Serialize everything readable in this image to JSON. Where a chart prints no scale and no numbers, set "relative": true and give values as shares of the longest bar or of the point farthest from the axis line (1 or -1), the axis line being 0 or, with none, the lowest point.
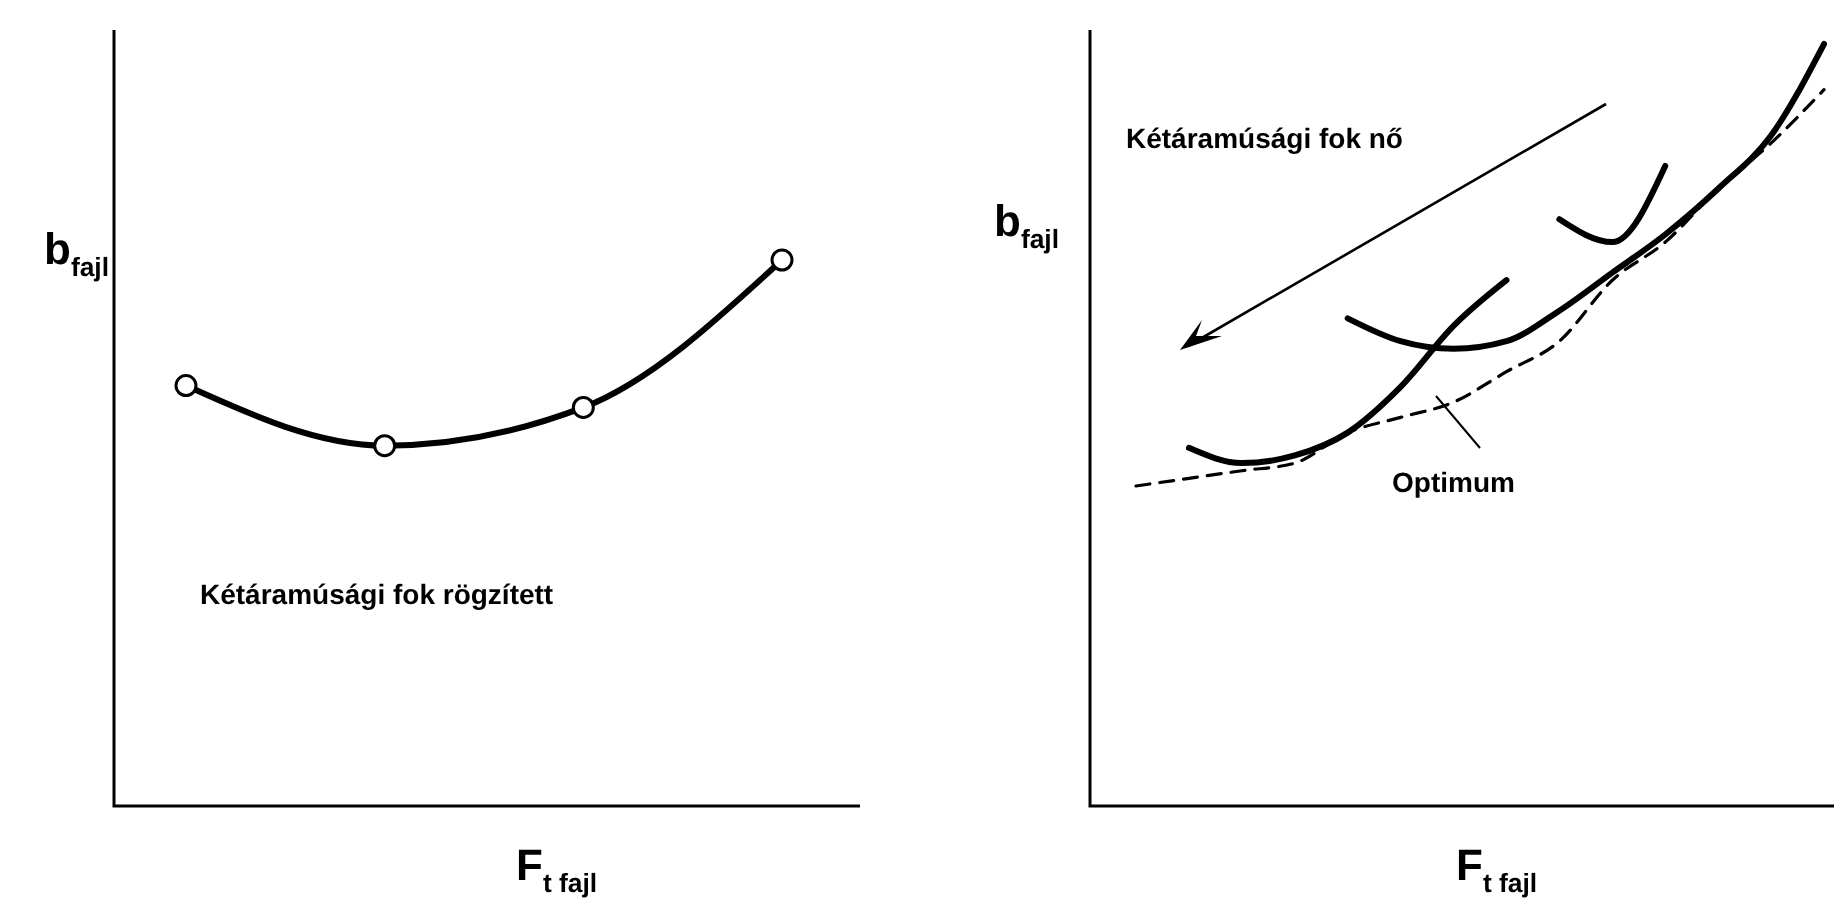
{
  "chart_data": [
    {
      "type": "line",
      "relative": true,
      "xlabel": "F$_{t fajl}$",
      "ylabel": "b$_{fajl}$",
      "marker": "circle",
      "categories": [
        null,
        null,
        null,
        null
      ],
      "series": [
        {
          "color": "#000000",
          "values": [
            0.77,
            0.66,
            0.73,
            1
          ]
        }
      ],
      "annotations": [
        "Kétáramúsági fok rögzített"
      ]
    },
    {
      "type": "line",
      "relative": true,
      "xlabel": "F$_{t fajl}$",
      "ylabel": "b$_{fajl}$",
      "categories": [
        null,
        null,
        null,
        null,
        null,
        null,
        null,
        null,
        null,
        null,
        null,
        null,
        null,
        null
      ],
      "series": [
        {
          "color": "#000000",
          "values": [
            null,
            0.47,
            0.45,
            0.46,
            0.49,
            0.55,
            0.63,
            0.69,
            null,
            null,
            null,
            null,
            null,
            null
          ]
        },
        {
          "color": "#000000",
          "values": [
            null,
            null,
            null,
            null,
            0.64,
            0.61,
            0.6,
            0.61,
            0.65,
            0.7,
            0.75,
            0.81,
            0.88,
            1
          ]
        },
        {
          "color": "#000000",
          "values": [
            null,
            null,
            null,
            null,
            null,
            null,
            null,
            null,
            0.77,
            0.74,
            0.84,
            null,
            null,
            null
          ]
        },
        {
          "color": "#000000",
          "line_style": "dashed",
          "values": [
            0.42,
            0.43,
            0.44,
            0.45,
            0.49,
            0.51,
            0.53,
            0.57,
            0.61,
            0.69,
            0.74,
            0.81,
            0.87,
            0.94
          ]
        }
      ],
      "annotations": [
        "Kétáramúsági fok nő",
        "Optimum"
      ]
    }
  ]
}
